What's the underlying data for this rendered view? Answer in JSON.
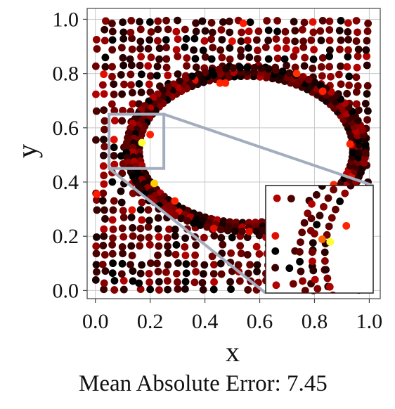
{
  "chart_data": {
    "type": "scatter",
    "xlabel": "x",
    "ylabel": "y",
    "xlim": [
      -0.03,
      1.04
    ],
    "ylim": [
      -0.03,
      1.04
    ],
    "xticks": [
      "0.0",
      "0.2",
      "0.4",
      "0.6",
      "0.8",
      "1.0"
    ],
    "yticks": [
      "0.0",
      "0.2",
      "0.4",
      "0.6",
      "0.8",
      "1.0"
    ],
    "grid": true,
    "colormap": [
      "#000000",
      "#5a0000",
      "#b00000",
      "#ff2a00",
      "#ff8c00",
      "#ffff00"
    ],
    "description_of_points": "Collocation points colored by absolute error on a unit square with a central cavity; most near zero error (black/dark red), a few high-error points in orange/yellow near the cavity boundary.",
    "highlight_points": [
      {
        "x": 0.17,
        "y": 0.545,
        "color": "#ffff33"
      },
      {
        "x": 0.215,
        "y": 0.395,
        "color": "#ffcc00"
      },
      {
        "x": 0.005,
        "y": 0.355,
        "color": "#ff1a00"
      },
      {
        "x": 0.455,
        "y": 0.765,
        "color": "#ff2200"
      },
      {
        "x": 0.475,
        "y": 0.765,
        "color": "#ff2200"
      },
      {
        "x": 0.735,
        "y": 0.8,
        "color": "#ff3300"
      },
      {
        "x": 0.83,
        "y": 0.735,
        "color": "#ff2200"
      },
      {
        "x": 0.93,
        "y": 0.54,
        "color": "#ff2200"
      },
      {
        "x": 0.87,
        "y": 0.39,
        "color": "#ff2200"
      },
      {
        "x": 0.29,
        "y": 0.33,
        "color": "#ff2200"
      },
      {
        "x": 0.54,
        "y": 0.985,
        "color": "#ff1a00"
      },
      {
        "x": 0.2,
        "y": 0.575,
        "color": "#ff2200"
      }
    ],
    "zoom_region": {
      "x": [
        0.05,
        0.25
      ],
      "y": [
        0.45,
        0.65
      ]
    },
    "zoom_color": "#a3adbd"
  },
  "footer": {
    "metric_label": "Mean Absolute Error: 7.45"
  }
}
